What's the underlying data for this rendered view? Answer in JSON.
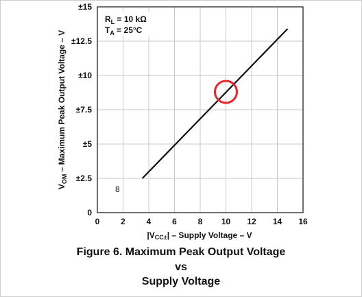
{
  "chart_data": {
    "type": "line",
    "xlabel": "|VCC±| – Supply Voltage – V",
    "ylabel": "VOM – Maximum Peak Output Voltage – V",
    "xlim": [
      0,
      16
    ],
    "ylim": [
      0,
      15
    ],
    "x_ticks": [
      "0",
      "2",
      "4",
      "6",
      "8",
      "10",
      "12",
      "14",
      "16"
    ],
    "y_ticks": [
      "0",
      "±2.5",
      "±5",
      "±7.5",
      "±10",
      "±12.5",
      "±15"
    ],
    "grid": true,
    "series": [
      {
        "x": [
          3.5,
          14.8
        ],
        "y": [
          2.5,
          13.4
        ]
      }
    ],
    "conditions": [
      "RL = 10 kΩ",
      "TA = 25°C"
    ],
    "annotations": {
      "marker_label": "8",
      "highlight_circle": {
        "x": 10.0,
        "y": 8.8,
        "color": "#e8232a"
      }
    },
    "legend_placement": "top-left"
  },
  "caption": {
    "line1": "Figure 6. Maximum Peak Output Voltage",
    "line2": "vs",
    "line3": "Supply Voltage"
  },
  "colors": {
    "line": "#111111",
    "grid": "#c8c8c8",
    "highlight": "#e8232a"
  }
}
